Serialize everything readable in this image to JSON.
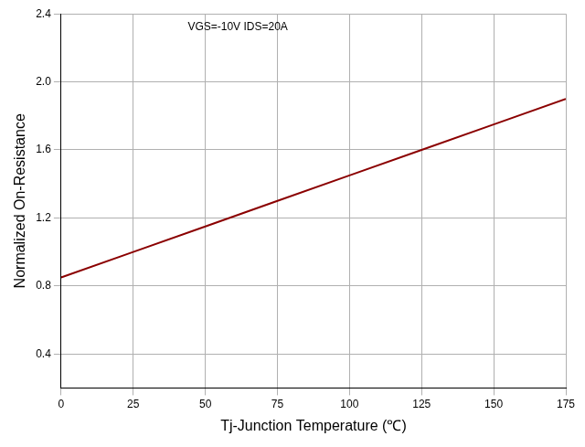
{
  "chart_data": {
    "type": "line",
    "x_label": "Tj-Junction Temperature (℃)",
    "y_label": "Normalized On-Resistance",
    "annotation": "VGS=-10V IDS=20A",
    "x": [
      0,
      25,
      50,
      75,
      100,
      125,
      150,
      175
    ],
    "series": [
      {
        "name": "Normalized On-Resistance",
        "color": "#8b0000",
        "values": [
          0.85,
          1.0,
          1.15,
          1.3,
          1.45,
          1.6,
          1.75,
          1.9
        ]
      }
    ],
    "xlim": [
      0,
      175
    ],
    "xticks": [
      0,
      25,
      50,
      75,
      100,
      125,
      150,
      175
    ],
    "ylim": [
      0.2,
      2.4
    ],
    "yticks": [
      0.4,
      0.8,
      1.2,
      1.6,
      {
        "value": 2,
        "label": "2.0"
      },
      2.4
    ],
    "grid": true
  }
}
